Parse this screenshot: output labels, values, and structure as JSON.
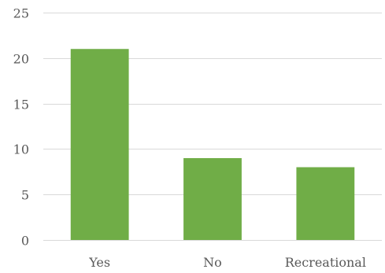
{
  "chart_data": {
    "type": "bar",
    "categories": [
      "Yes",
      "No",
      "Recreational"
    ],
    "values": [
      21,
      9,
      8
    ],
    "ylim": [
      0,
      25
    ],
    "yticks": [
      0,
      5,
      10,
      15,
      20,
      25
    ],
    "title": "",
    "xlabel": "",
    "ylabel": "",
    "grid": true,
    "legend": "none",
    "bar_color": "#70ad47",
    "grid_color": "#d9d9d9",
    "text_color": "#595959"
  }
}
